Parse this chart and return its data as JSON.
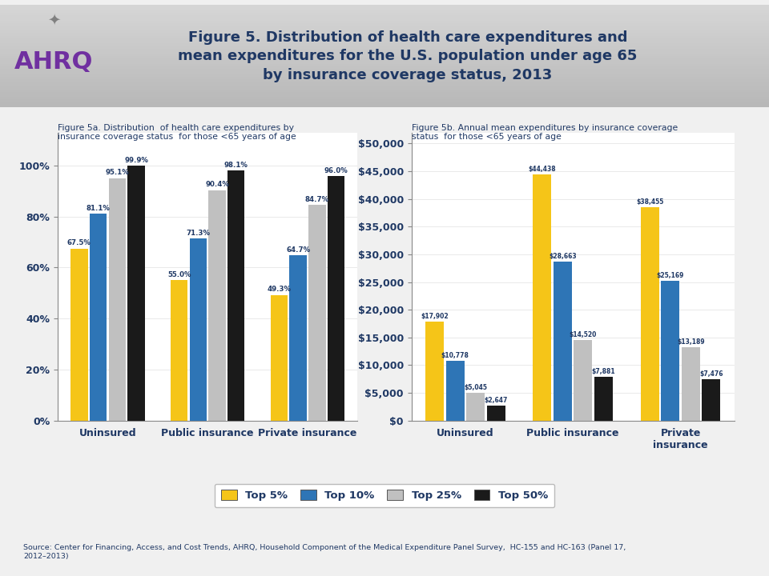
{
  "title": "Figure 5. Distribution of health care expenditures and\nmean expenditures for the U.S. population under age 65\nby insurance coverage status, 2013",
  "title_color": "#1F3864",
  "header_bg": "#C8C8C8",
  "body_bg": "#F0F0F0",
  "chart_bg": "#FFFFFF",
  "subtitle_5a": "Figure 5a. Distribution  of health care expenditures by\ninsurance coverage status  for those <65 years of age",
  "subtitle_5b": "Figure 5b. Annual mean expenditures by insurance coverage\nstatus  for those <65 years of age",
  "source": "Source: Center for Financing, Access, and Cost Trends, AHRQ, Household Component of the Medical Expenditure Panel Survey,  HC-155 and HC-163 (Panel 17,\n2012–2013)",
  "categories_5a": [
    "Uninsured",
    "Public insurance",
    "Private insurance"
  ],
  "categories_5b": [
    "Uninsured",
    "Public insurance",
    "Private\ninsurance"
  ],
  "legend_labels": [
    "Top 5%",
    "Top 10%",
    "Top 25%",
    "Top 50%"
  ],
  "colors": [
    "#F5C518",
    "#2E75B6",
    "#C0C0C0",
    "#1A1A1A"
  ],
  "label_color": "#1F3864",
  "fig5a_values": [
    [
      67.5,
      81.1,
      95.1,
      99.9
    ],
    [
      55.0,
      71.3,
      90.4,
      98.1
    ],
    [
      49.3,
      64.7,
      84.7,
      96.0
    ]
  ],
  "fig5a_labels": [
    [
      "67.5%",
      "81.1%",
      "95.1%",
      "99.9%"
    ],
    [
      "55.0%",
      "71.3%",
      "90.4%",
      "98.1%"
    ],
    [
      "49.3%",
      "64.7%",
      "84.7%",
      "96.0%"
    ]
  ],
  "fig5b_values": [
    [
      17902,
      10778,
      5045,
      2647
    ],
    [
      44438,
      28663,
      14520,
      7881
    ],
    [
      38455,
      25169,
      13189,
      7476
    ]
  ],
  "fig5b_labels": [
    [
      "$17,902",
      "$10,778",
      "$5,045",
      "$2,647"
    ],
    [
      "$44,438",
      "$28,663",
      "$14,520",
      "$7,881"
    ],
    [
      "$38,455",
      "$25,169",
      "$13,189",
      "$7,476"
    ]
  ],
  "yticks_5a": [
    0,
    20,
    40,
    60,
    80,
    100
  ],
  "yticklabels_5a": [
    "0%",
    "20%",
    "40%",
    "60%",
    "80%",
    "100%"
  ],
  "yticks_5b": [
    0,
    5000,
    10000,
    15000,
    20000,
    25000,
    30000,
    35000,
    40000,
    45000,
    50000
  ],
  "yticklabels_5b": [
    "$0",
    "$5,000",
    "$10,000",
    "$15,000",
    "$20,000",
    "$25,000",
    "$30,000",
    "$35,000",
    "$40,000",
    "$45,000",
    "$50,000"
  ]
}
